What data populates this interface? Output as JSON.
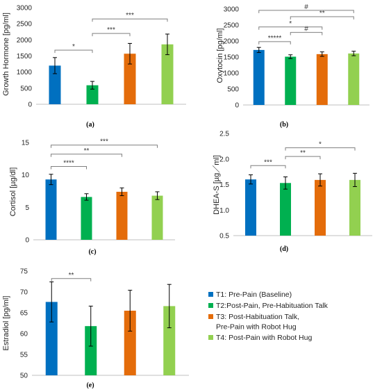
{
  "colors": {
    "t1": "#0070c0",
    "t2": "#00b050",
    "t3": "#e46c0a",
    "t4": "#92d050",
    "axis": "#bfbfbf",
    "errbar": "#000000",
    "sig": "#7f7f7f"
  },
  "legend": [
    {
      "lines": [
        "T1: Pre-Pain (Baseline)"
      ],
      "color_key": "t1"
    },
    {
      "lines": [
        "T2:Post-Pain, Pre-Habituation Talk"
      ],
      "color_key": "t2"
    },
    {
      "lines": [
        "T3: Post-Habituation Talk,",
        "Pre-Pain with Robot Hug"
      ],
      "color_key": "t3"
    },
    {
      "lines": [
        "T4: Post-Pain with Robot Hug"
      ],
      "color_key": "t4"
    }
  ],
  "chart_data": [
    {
      "type": "bar",
      "panel": "(a)",
      "ylabel": "Growth Hormone [pg/ml]",
      "ylim": [
        0,
        3000
      ],
      "yticks": [
        0,
        500,
        1000,
        1500,
        2000,
        2500,
        3000
      ],
      "categories": [
        "T1",
        "T2",
        "T3",
        "T4"
      ],
      "values": [
        1200,
        590,
        1570,
        1860
      ],
      "errors": [
        250,
        120,
        320,
        320
      ],
      "significance": [
        {
          "from": 0,
          "to": 1,
          "y": 1680,
          "label": "*"
        },
        {
          "from": 1,
          "to": 2,
          "y": 2200,
          "label": "***"
        },
        {
          "from": 1,
          "to": 3,
          "y": 2650,
          "label": "***"
        }
      ]
    },
    {
      "type": "bar",
      "panel": "(b)",
      "ylabel": "Oxytocin [pg/ml]",
      "ylim": [
        0,
        3000
      ],
      "yticks": [
        0,
        500,
        1000,
        1500,
        2000,
        2500,
        3000
      ],
      "categories": [
        "T1",
        "T2",
        "T3",
        "T4"
      ],
      "values": [
        1720,
        1510,
        1590,
        1610
      ],
      "errors": [
        80,
        60,
        70,
        70
      ],
      "significance": [
        {
          "from": 0,
          "to": 1,
          "y": 1980,
          "label": "*****"
        },
        {
          "from": 1,
          "to": 2,
          "y": 2270,
          "label": "#"
        },
        {
          "from": 0,
          "to": 2,
          "y": 2440,
          "label": "*"
        },
        {
          "from": 1,
          "to": 3,
          "y": 2760,
          "label": "**"
        },
        {
          "from": 0,
          "to": 3,
          "y": 2960,
          "label": "#"
        }
      ]
    },
    {
      "type": "bar",
      "panel": "(c)",
      "ylabel": "Cortisol [µg/dl]",
      "ylim": [
        0,
        15
      ],
      "yticks": [
        0,
        5,
        10,
        15
      ],
      "categories": [
        "T1",
        "T2",
        "T3",
        "T4"
      ],
      "values": [
        9.3,
        6.6,
        7.4,
        6.8
      ],
      "errors": [
        0.8,
        0.5,
        0.6,
        0.6
      ],
      "significance": [
        {
          "from": 0,
          "to": 1,
          "y": 11.3,
          "label": "****"
        },
        {
          "from": 0,
          "to": 2,
          "y": 13.2,
          "label": "**"
        },
        {
          "from": 0,
          "to": 3,
          "y": 14.6,
          "label": "***"
        }
      ]
    },
    {
      "type": "bar",
      "panel": "(d)",
      "ylabel": "DHEA-S [µg／ml]",
      "ylim": [
        0.5,
        2.5
      ],
      "yticks": [
        0.5,
        1.0,
        1.5,
        2.0,
        2.5
      ],
      "categories": [
        "T1",
        "T2",
        "T3",
        "T4"
      ],
      "values": [
        1.6,
        1.53,
        1.59,
        1.59
      ],
      "errors": [
        0.09,
        0.12,
        0.12,
        0.13
      ],
      "significance": [
        {
          "from": 0,
          "to": 1,
          "y": 1.87,
          "label": "***"
        },
        {
          "from": 1,
          "to": 2,
          "y": 2.05,
          "label": "**"
        },
        {
          "from": 1,
          "to": 3,
          "y": 2.22,
          "label": "*"
        }
      ]
    },
    {
      "type": "bar",
      "panel": "(e)",
      "ylabel": "Estradiol [pg/ml]",
      "ylim": [
        50,
        75
      ],
      "yticks": [
        50,
        55,
        60,
        65,
        70,
        75
      ],
      "categories": [
        "T1",
        "T2",
        "T3",
        "T4"
      ],
      "values": [
        67.6,
        61.8,
        65.5,
        66.6
      ],
      "errors": [
        4.8,
        4.8,
        4.9,
        5.2
      ],
      "significance": [
        {
          "from": 0,
          "to": 1,
          "y": 73.2,
          "label": "**"
        }
      ]
    }
  ]
}
